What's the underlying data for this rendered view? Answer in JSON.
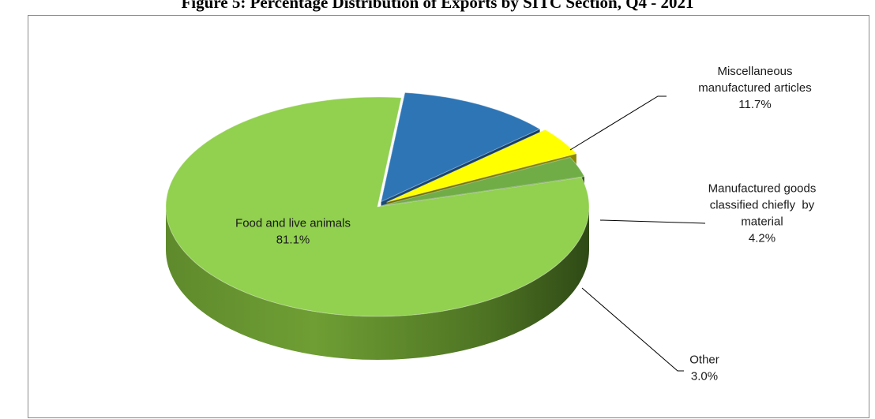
{
  "chart_data": {
    "type": "pie",
    "title": "Figure 5: Percentage Distribution of Exports by SITC Section, Q4 - 2021",
    "slices": [
      {
        "label_lines": [
          "Food and live animals"
        ],
        "value": 81.1,
        "value_label": "81.1%",
        "color": "#92d050"
      },
      {
        "label_lines": [
          "Miscellaneous",
          "manufactured articles"
        ],
        "value": 11.7,
        "value_label": "11.7%",
        "color": "#2e75b6"
      },
      {
        "label_lines": [
          "Manufactured goods",
          "classified chiefly  by",
          "material"
        ],
        "value": 4.2,
        "value_label": "4.2%",
        "color": "#ffff00"
      },
      {
        "label_lines": [
          "Other"
        ],
        "value": 3.0,
        "value_label": "3.0%",
        "color": "#70ad47"
      }
    ],
    "legend": "none",
    "style": "3d-exploded"
  }
}
